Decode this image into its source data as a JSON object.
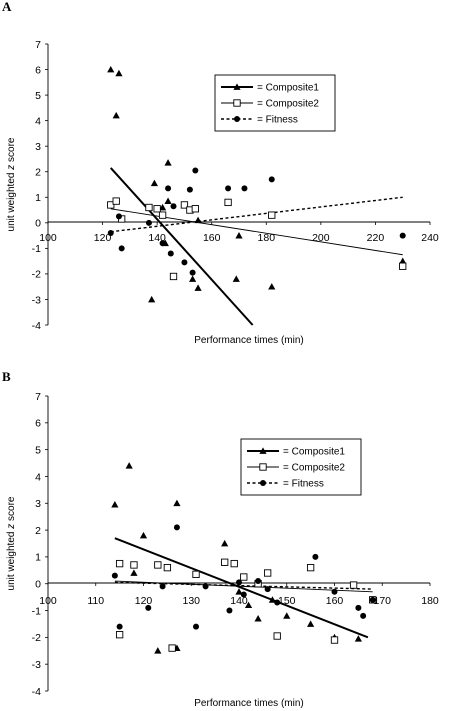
{
  "chart_data": [
    {
      "panel": "A",
      "type": "scatter",
      "xlabel": "Performance times (min)",
      "ylabel": "unit weighted z score",
      "xlim": [
        100,
        240
      ],
      "ylim": [
        -4,
        7
      ],
      "xticks": [
        100,
        120,
        140,
        160,
        180,
        200,
        220,
        240
      ],
      "yticks": [
        -4,
        -3,
        -2,
        -1,
        0,
        1,
        2,
        3,
        4,
        5,
        6,
        7
      ],
      "legend_position": "top-center",
      "series": [
        {
          "name": "Composite1",
          "marker": "triangle",
          "line_style": "solid-thick",
          "trend": [
            [
              123,
              2.15
            ],
            [
              175,
              -4.0
            ]
          ],
          "points": [
            [
              123,
              6.0
            ],
            [
              126,
              5.85
            ],
            [
              125,
              4.2
            ],
            [
              139,
              1.55
            ],
            [
              144,
              2.35
            ],
            [
              144,
              0.85
            ],
            [
              142,
              0.6
            ],
            [
              138,
              -3.0
            ],
            [
              143,
              -0.8
            ],
            [
              155,
              0.1
            ],
            [
              153,
              -2.2
            ],
            [
              155,
              -2.55
            ],
            [
              169,
              -2.2
            ],
            [
              182,
              -2.5
            ],
            [
              170,
              -0.5
            ],
            [
              230,
              -1.5
            ]
          ]
        },
        {
          "name": "Composite2",
          "marker": "open-square",
          "line_style": "solid-thin",
          "trend": [
            [
              123,
              0.55
            ],
            [
              230,
              -1.25
            ]
          ],
          "points": [
            [
              123,
              0.7
            ],
            [
              125,
              0.85
            ],
            [
              127,
              0.15
            ],
            [
              137,
              0.6
            ],
            [
              140,
              0.55
            ],
            [
              142,
              0.3
            ],
            [
              150,
              0.7
            ],
            [
              152,
              0.5
            ],
            [
              154,
              0.55
            ],
            [
              166,
              0.8
            ],
            [
              182,
              0.3
            ],
            [
              146,
              -2.1
            ],
            [
              230,
              -1.7
            ]
          ]
        },
        {
          "name": "Fitness",
          "marker": "filled-circle",
          "line_style": "dashed",
          "trend": [
            [
              123,
              -0.35
            ],
            [
              230,
              1.0
            ]
          ],
          "points": [
            [
              123,
              -0.4
            ],
            [
              126,
              0.25
            ],
            [
              127,
              -1.0
            ],
            [
              137,
              0.0
            ],
            [
              142,
              -0.8
            ],
            [
              144,
              1.35
            ],
            [
              145,
              -1.2
            ],
            [
              146,
              0.65
            ],
            [
              152,
              1.3
            ],
            [
              154,
              2.05
            ],
            [
              150,
              -1.55
            ],
            [
              153,
              -1.95
            ],
            [
              166,
              1.35
            ],
            [
              172,
              1.35
            ],
            [
              182,
              1.7
            ],
            [
              230,
              -0.5
            ]
          ]
        }
      ]
    },
    {
      "panel": "B",
      "type": "scatter",
      "xlabel": "Performance times (min)",
      "ylabel": "unit weighted z score",
      "xlim": [
        100,
        180
      ],
      "ylim": [
        -4,
        7
      ],
      "xticks": [
        100,
        110,
        120,
        130,
        140,
        150,
        160,
        170,
        180
      ],
      "yticks": [
        -4,
        -3,
        -2,
        -1,
        0,
        1,
        2,
        3,
        4,
        5,
        6,
        7
      ],
      "legend_position": "upper-right",
      "series": [
        {
          "name": "Composite1",
          "marker": "triangle",
          "line_style": "solid-thick",
          "trend": [
            [
              114,
              1.7
            ],
            [
              167,
              -2.0
            ]
          ],
          "points": [
            [
              114,
              2.95
            ],
            [
              117,
              4.4
            ],
            [
              120,
              1.8
            ],
            [
              127,
              3.0
            ],
            [
              118,
              0.4
            ],
            [
              123,
              -2.5
            ],
            [
              127,
              -2.4
            ],
            [
              137,
              1.5
            ],
            [
              140,
              -0.3
            ],
            [
              142,
              -0.8
            ],
            [
              144,
              -1.3
            ],
            [
              147,
              -0.6
            ],
            [
              150,
              -1.2
            ],
            [
              155,
              -1.5
            ],
            [
              160,
              -2.0
            ],
            [
              165,
              -2.05
            ],
            [
              168,
              -0.6
            ]
          ]
        },
        {
          "name": "Composite2",
          "marker": "open-square",
          "line_style": "solid-thin",
          "trend": [
            [
              114,
              0.1
            ],
            [
              168,
              -0.3
            ]
          ],
          "points": [
            [
              115,
              0.75
            ],
            [
              118,
              0.7
            ],
            [
              123,
              0.7
            ],
            [
              125,
              0.6
            ],
            [
              131,
              0.35
            ],
            [
              137,
              0.8
            ],
            [
              139,
              0.75
            ],
            [
              141,
              0.25
            ],
            [
              144,
              0.0
            ],
            [
              146,
              0.4
            ],
            [
              155,
              0.6
            ],
            [
              164,
              -0.05
            ],
            [
              115,
              -1.9
            ],
            [
              126,
              -2.4
            ],
            [
              148,
              -1.95
            ],
            [
              160,
              -2.1
            ],
            [
              168,
              -0.6
            ]
          ]
        },
        {
          "name": "Fitness",
          "marker": "filled-circle",
          "line_style": "dashed",
          "trend": [
            [
              114,
              0.05
            ],
            [
              168,
              -0.2
            ]
          ],
          "points": [
            [
              114,
              0.3
            ],
            [
              115,
              -1.6
            ],
            [
              121,
              -0.9
            ],
            [
              124,
              -0.1
            ],
            [
              127,
              2.1
            ],
            [
              131,
              -1.6
            ],
            [
              133,
              -0.1
            ],
            [
              138,
              -1.0
            ],
            [
              140,
              0.05
            ],
            [
              141,
              -0.4
            ],
            [
              144,
              0.1
            ],
            [
              146,
              -0.2
            ],
            [
              148,
              -0.7
            ],
            [
              156,
              1.0
            ],
            [
              160,
              -0.3
            ],
            [
              165,
              -0.9
            ],
            [
              166,
              -1.2
            ],
            [
              168,
              -0.6
            ]
          ]
        }
      ]
    }
  ]
}
